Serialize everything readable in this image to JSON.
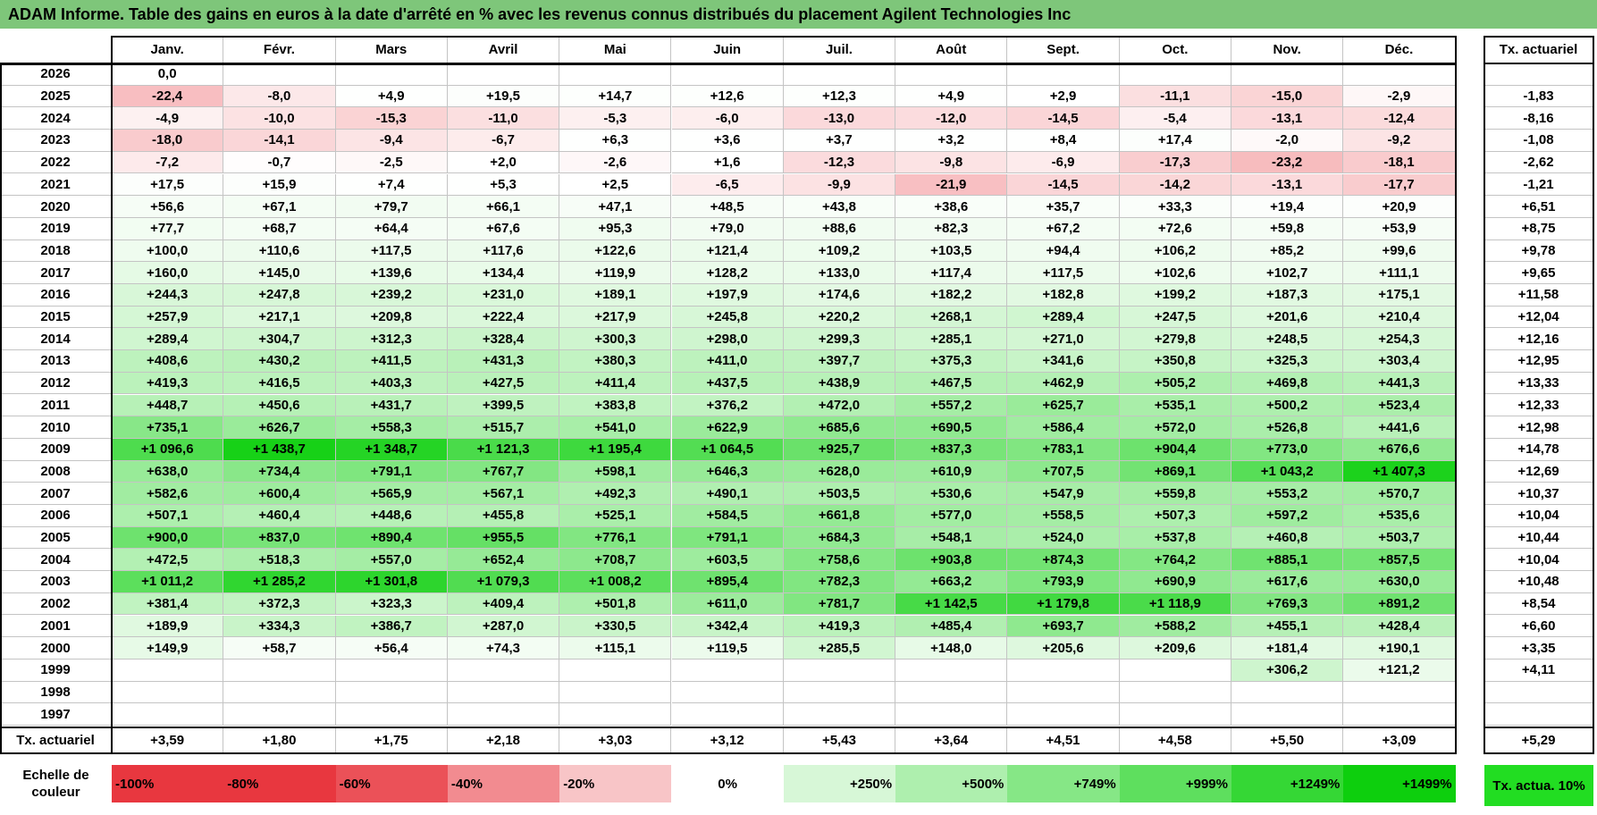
{
  "title": "ADAM Informe. Table des gains en euros à la date d'arrêté en % avec les revenus connus distribués du placement Agilent Technologies Inc",
  "table": {
    "columns": [
      "Janv.",
      "Févr.",
      "Mars",
      "Avril",
      "Mai",
      "Juin",
      "Juil.",
      "Août",
      "Sept.",
      "Oct.",
      "Nov.",
      "Déc."
    ],
    "rate_header": "Tx. actuariel",
    "rows": [
      {
        "year": "2026",
        "cells": [
          "0,0",
          null,
          null,
          null,
          null,
          null,
          null,
          null,
          null,
          null,
          null,
          null
        ],
        "rate": null
      },
      {
        "year": "2025",
        "cells": [
          "-22,4",
          "-8,0",
          "+4,9",
          "+19,5",
          "+14,7",
          "+12,6",
          "+12,3",
          "+4,9",
          "+2,9",
          "-11,1",
          "-15,0",
          "-2,9"
        ],
        "rate": "-1,83"
      },
      {
        "year": "2024",
        "cells": [
          "-4,9",
          "-10,0",
          "-15,3",
          "-11,0",
          "-5,3",
          "-6,0",
          "-13,0",
          "-12,0",
          "-14,5",
          "-5,4",
          "-13,1",
          "-12,4"
        ],
        "rate": "-8,16"
      },
      {
        "year": "2023",
        "cells": [
          "-18,0",
          "-14,1",
          "-9,4",
          "-6,7",
          "+6,3",
          "+3,6",
          "+3,7",
          "+3,2",
          "+8,4",
          "+17,4",
          "-2,0",
          "-9,2"
        ],
        "rate": "-1,08"
      },
      {
        "year": "2022",
        "cells": [
          "-7,2",
          "-0,7",
          "-2,5",
          "+2,0",
          "-2,6",
          "+1,6",
          "-12,3",
          "-9,8",
          "-6,9",
          "-17,3",
          "-23,2",
          "-18,1"
        ],
        "rate": "-2,62"
      },
      {
        "year": "2021",
        "cells": [
          "+17,5",
          "+15,9",
          "+7,4",
          "+5,3",
          "+2,5",
          "-6,5",
          "-9,9",
          "-21,9",
          "-14,5",
          "-14,2",
          "-13,1",
          "-17,7"
        ],
        "rate": "-1,21"
      },
      {
        "year": "2020",
        "cells": [
          "+56,6",
          "+67,1",
          "+79,7",
          "+66,1",
          "+47,1",
          "+48,5",
          "+43,8",
          "+38,6",
          "+35,7",
          "+33,3",
          "+19,4",
          "+20,9"
        ],
        "rate": "+6,51"
      },
      {
        "year": "2019",
        "cells": [
          "+77,7",
          "+68,7",
          "+64,4",
          "+67,6",
          "+95,3",
          "+79,0",
          "+88,6",
          "+82,3",
          "+67,2",
          "+72,6",
          "+59,8",
          "+53,9"
        ],
        "rate": "+8,75"
      },
      {
        "year": "2018",
        "cells": [
          "+100,0",
          "+110,6",
          "+117,5",
          "+117,6",
          "+122,6",
          "+121,4",
          "+109,2",
          "+103,5",
          "+94,4",
          "+106,2",
          "+85,2",
          "+99,6"
        ],
        "rate": "+9,78"
      },
      {
        "year": "2017",
        "cells": [
          "+160,0",
          "+145,0",
          "+139,6",
          "+134,4",
          "+119,9",
          "+128,2",
          "+133,0",
          "+117,4",
          "+117,5",
          "+102,6",
          "+102,7",
          "+111,1"
        ],
        "rate": "+9,65"
      },
      {
        "year": "2016",
        "cells": [
          "+244,3",
          "+247,8",
          "+239,2",
          "+231,0",
          "+189,1",
          "+197,9",
          "+174,6",
          "+182,2",
          "+182,8",
          "+199,2",
          "+187,3",
          "+175,1"
        ],
        "rate": "+11,58"
      },
      {
        "year": "2015",
        "cells": [
          "+257,9",
          "+217,1",
          "+209,8",
          "+222,4",
          "+217,9",
          "+245,8",
          "+220,2",
          "+268,1",
          "+289,4",
          "+247,5",
          "+201,6",
          "+210,4"
        ],
        "rate": "+12,04"
      },
      {
        "year": "2014",
        "cells": [
          "+289,4",
          "+304,7",
          "+312,3",
          "+328,4",
          "+300,3",
          "+298,0",
          "+299,3",
          "+285,1",
          "+271,0",
          "+279,8",
          "+248,5",
          "+254,3"
        ],
        "rate": "+12,16"
      },
      {
        "year": "2013",
        "cells": [
          "+408,6",
          "+430,2",
          "+411,5",
          "+431,3",
          "+380,3",
          "+411,0",
          "+397,7",
          "+375,3",
          "+341,6",
          "+350,8",
          "+325,3",
          "+303,4"
        ],
        "rate": "+12,95"
      },
      {
        "year": "2012",
        "cells": [
          "+419,3",
          "+416,5",
          "+403,3",
          "+427,5",
          "+411,4",
          "+437,5",
          "+438,9",
          "+467,5",
          "+462,9",
          "+505,2",
          "+469,8",
          "+441,3"
        ],
        "rate": "+13,33"
      },
      {
        "year": "2011",
        "cells": [
          "+448,7",
          "+450,6",
          "+431,7",
          "+399,5",
          "+383,8",
          "+376,2",
          "+472,0",
          "+557,2",
          "+625,7",
          "+535,1",
          "+500,2",
          "+523,4"
        ],
        "rate": "+12,33"
      },
      {
        "year": "2010",
        "cells": [
          "+735,1",
          "+626,7",
          "+558,3",
          "+515,7",
          "+541,0",
          "+622,9",
          "+685,6",
          "+690,5",
          "+586,4",
          "+572,0",
          "+526,8",
          "+441,6"
        ],
        "rate": "+12,98"
      },
      {
        "year": "2009",
        "cells": [
          "+1 096,6",
          "+1 438,7",
          "+1 348,7",
          "+1 121,3",
          "+1 195,4",
          "+1 064,5",
          "+925,7",
          "+837,3",
          "+783,1",
          "+904,4",
          "+773,0",
          "+676,6"
        ],
        "rate": "+14,78"
      },
      {
        "year": "2008",
        "cells": [
          "+638,0",
          "+734,4",
          "+791,1",
          "+767,7",
          "+598,1",
          "+646,3",
          "+628,0",
          "+610,9",
          "+707,5",
          "+869,1",
          "+1 043,2",
          "+1 407,3"
        ],
        "rate": "+12,69"
      },
      {
        "year": "2007",
        "cells": [
          "+582,6",
          "+600,4",
          "+565,9",
          "+567,1",
          "+492,3",
          "+490,1",
          "+503,5",
          "+530,6",
          "+547,9",
          "+559,8",
          "+553,2",
          "+570,7"
        ],
        "rate": "+10,37"
      },
      {
        "year": "2006",
        "cells": [
          "+507,1",
          "+460,4",
          "+448,6",
          "+455,8",
          "+525,1",
          "+584,5",
          "+661,8",
          "+577,0",
          "+558,5",
          "+507,3",
          "+597,2",
          "+535,6"
        ],
        "rate": "+10,04"
      },
      {
        "year": "2005",
        "cells": [
          "+900,0",
          "+837,0",
          "+890,4",
          "+955,5",
          "+776,1",
          "+791,1",
          "+684,3",
          "+548,1",
          "+524,0",
          "+537,8",
          "+460,8",
          "+503,7"
        ],
        "rate": "+10,44"
      },
      {
        "year": "2004",
        "cells": [
          "+472,5",
          "+518,3",
          "+557,0",
          "+652,4",
          "+708,7",
          "+603,5",
          "+758,6",
          "+903,8",
          "+874,3",
          "+764,2",
          "+885,1",
          "+857,5"
        ],
        "rate": "+10,04"
      },
      {
        "year": "2003",
        "cells": [
          "+1 011,2",
          "+1 285,2",
          "+1 301,8",
          "+1 079,3",
          "+1 008,2",
          "+895,4",
          "+782,3",
          "+663,2",
          "+793,9",
          "+690,9",
          "+617,6",
          "+630,0"
        ],
        "rate": "+10,48"
      },
      {
        "year": "2002",
        "cells": [
          "+381,4",
          "+372,3",
          "+323,3",
          "+409,4",
          "+501,8",
          "+611,0",
          "+781,7",
          "+1 142,5",
          "+1 179,8",
          "+1 118,9",
          "+769,3",
          "+891,2"
        ],
        "rate": "+8,54"
      },
      {
        "year": "2001",
        "cells": [
          "+189,9",
          "+334,3",
          "+386,7",
          "+287,0",
          "+330,5",
          "+342,4",
          "+419,3",
          "+485,4",
          "+693,7",
          "+588,2",
          "+455,1",
          "+428,4"
        ],
        "rate": "+6,60"
      },
      {
        "year": "2000",
        "cells": [
          "+149,9",
          "+58,7",
          "+56,4",
          "+74,3",
          "+115,1",
          "+119,5",
          "+285,5",
          "+148,0",
          "+205,6",
          "+209,6",
          "+181,4",
          "+190,1"
        ],
        "rate": "+3,35"
      },
      {
        "year": "1999",
        "cells": [
          null,
          null,
          null,
          null,
          null,
          null,
          null,
          null,
          null,
          null,
          "+306,2",
          "+121,2"
        ],
        "rate": "+4,11"
      },
      {
        "year": "1998",
        "cells": [
          null,
          null,
          null,
          null,
          null,
          null,
          null,
          null,
          null,
          null,
          null,
          null
        ],
        "rate": null
      },
      {
        "year": "1997",
        "cells": [
          null,
          null,
          null,
          null,
          null,
          null,
          null,
          null,
          null,
          null,
          null,
          null
        ],
        "rate": null
      }
    ],
    "footer": {
      "label": "Tx. actuariel",
      "cells": [
        "+3,59",
        "+1,80",
        "+1,75",
        "+2,18",
        "+3,03",
        "+3,12",
        "+5,43",
        "+3,64",
        "+4,51",
        "+4,58",
        "+5,50",
        "+3,09"
      ],
      "rate": "+5,29"
    }
  },
  "scale": {
    "label": "Echelle de couleur",
    "steps": [
      "-100%",
      "-80%",
      "-60%",
      "-40%",
      "-20%",
      "0%",
      "+250%",
      "+500%",
      "+749%",
      "+999%",
      "+1249%",
      "+1499%"
    ],
    "rate_label": "Tx. actua. 10%"
  }
}
